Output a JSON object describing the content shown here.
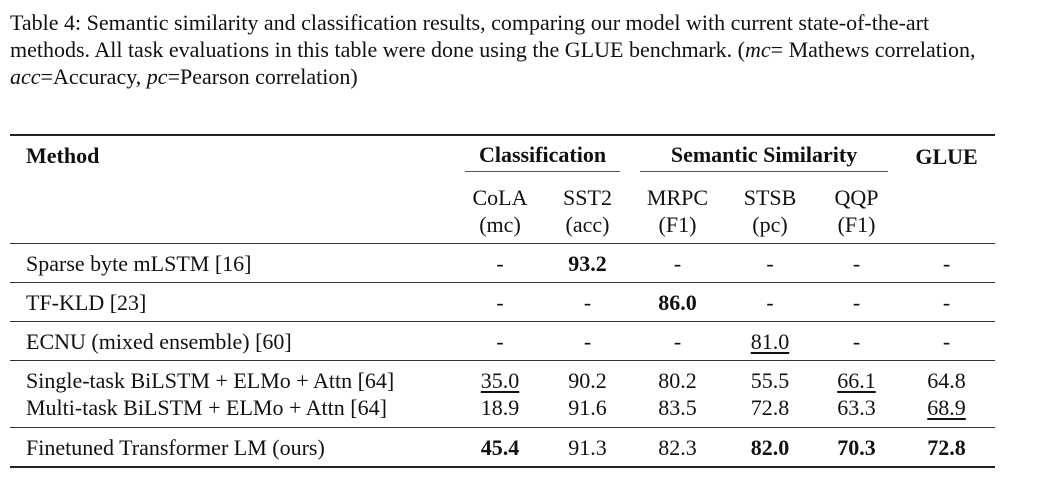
{
  "caption": [
    "Table 4: Semantic similarity and classification results, comparing our model with current state-of-the-art methods. All task evaluations in this table were done using the GLUE benchmark. (",
    "mc",
    "= Mathews correlation, ",
    "acc",
    "=Accuracy, ",
    "pc",
    "=Pearson correlation)"
  ],
  "table": {
    "header": {
      "method": "Method",
      "groups": [
        "Classification",
        "Semantic Similarity",
        "GLUE"
      ],
      "columns": [
        {
          "name": "CoLA",
          "metric": "(mc)"
        },
        {
          "name": "SST2",
          "metric": "(acc)"
        },
        {
          "name": "MRPC",
          "metric": "(F1)"
        },
        {
          "name": "STSB",
          "metric": "(pc)"
        },
        {
          "name": "QQP",
          "metric": "(F1)"
        }
      ]
    },
    "row_groups": [
      [
        {
          "method": "Sparse byte mLSTM [16]",
          "values": [
            "-",
            "93.2",
            "-",
            "-",
            "-",
            "-"
          ],
          "bold": [
            1
          ]
        }
      ],
      [
        {
          "method": "TF-KLD [23]",
          "values": [
            "-",
            "-",
            "86.0",
            "-",
            "-",
            "-"
          ],
          "bold": [
            2
          ]
        }
      ],
      [
        {
          "method": "ECNU (mixed ensemble) [60]",
          "values": [
            "-",
            "-",
            "-",
            "81.0",
            "-",
            "-"
          ],
          "underline": [
            3
          ]
        }
      ],
      [
        {
          "method": "Single-task BiLSTM + ELMo + Attn [64]",
          "values": [
            "35.0",
            "90.2",
            "80.2",
            "55.5",
            "66.1",
            "64.8"
          ],
          "underline": [
            0,
            4
          ]
        },
        {
          "method": "Multi-task BiLSTM + ELMo + Attn [64]",
          "values": [
            "18.9",
            "91.6",
            "83.5",
            "72.8",
            "63.3",
            "68.9"
          ],
          "underline": [
            5
          ]
        }
      ],
      [
        {
          "method": "Finetuned Transformer LM (ours)",
          "values": [
            "45.4",
            "91.3",
            "82.3",
            "82.0",
            "70.3",
            "72.8"
          ],
          "bold": [
            0,
            3,
            4,
            5
          ]
        }
      ]
    ]
  }
}
